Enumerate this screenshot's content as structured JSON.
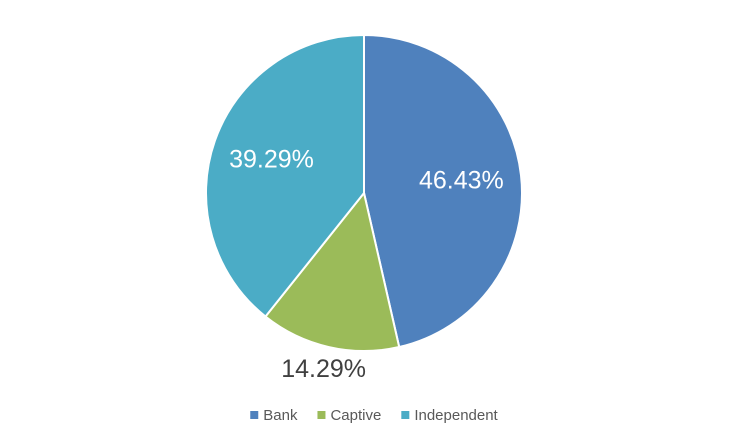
{
  "chart_data": {
    "type": "pie",
    "categories": [
      "Bank",
      "Captive",
      "Independent"
    ],
    "values": [
      46.43,
      14.29,
      39.29
    ],
    "value_labels": [
      "46.43%",
      "14.29%",
      "39.29%"
    ],
    "colors": [
      "#4f81bd",
      "#9bbb59",
      "#4bacc6"
    ],
    "legend": "bottom"
  }
}
